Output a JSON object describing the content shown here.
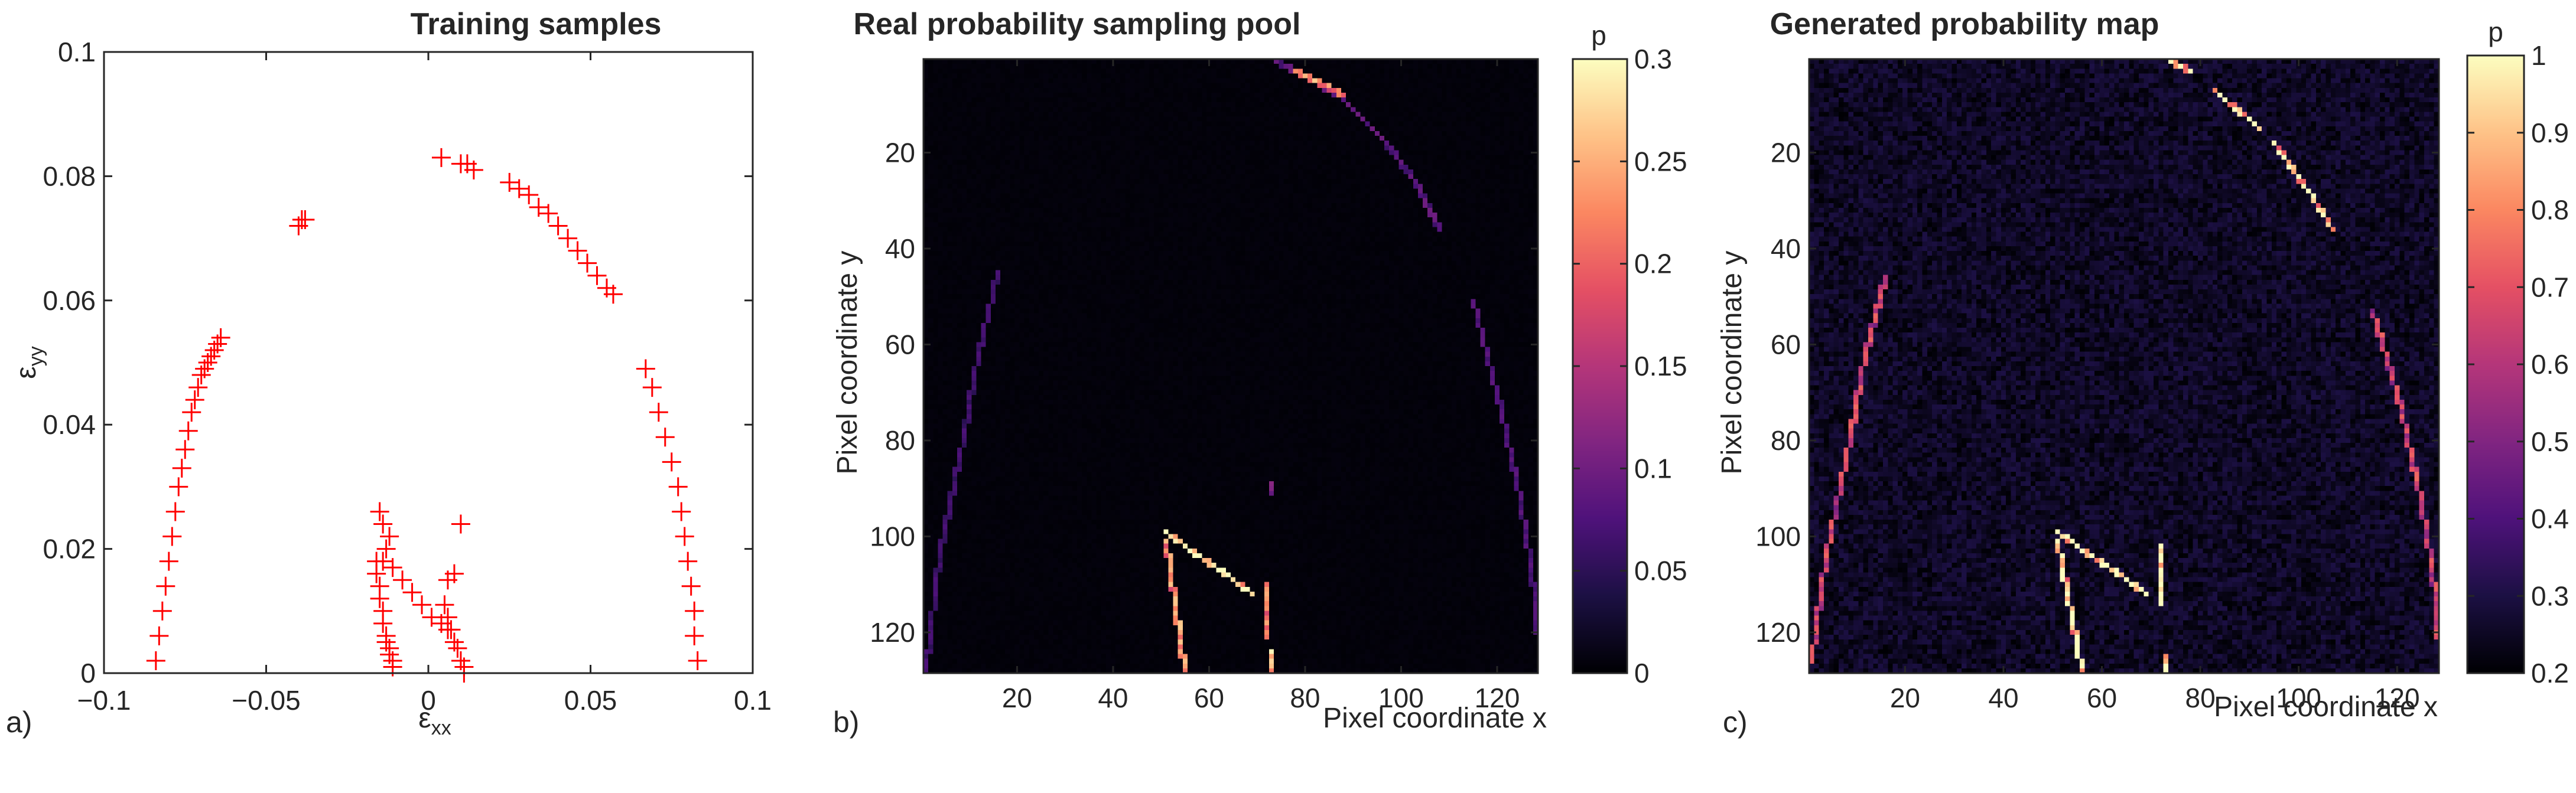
{
  "figure": {
    "panels": [
      {
        "label": "a)",
        "title": "Training samples"
      },
      {
        "label": "b)",
        "title": "Real probability sampling pool"
      },
      {
        "label": "c)",
        "title": "Generated probability map"
      }
    ]
  },
  "chart_data": [
    {
      "type": "scatter",
      "title": "Training samples",
      "xlabel": "ε_xx",
      "ylabel": "ε_yy",
      "xlim": [
        -0.1,
        0.1
      ],
      "ylim": [
        0,
        0.1
      ],
      "xticks": [
        -0.1,
        -0.05,
        0,
        0.05,
        0.1
      ],
      "xtick_labels": [
        "−0.1",
        "−0.05",
        "0",
        "0.05",
        "0.1"
      ],
      "yticks": [
        0,
        0.02,
        0.04,
        0.06,
        0.08,
        0.1
      ],
      "ytick_labels": [
        "0",
        "0.02",
        "0.04",
        "0.06",
        "0.08",
        "0.1"
      ],
      "marker": "+",
      "marker_color": "#ff0000",
      "series": [
        {
          "values": {
            "x": [
              -0.084,
              -0.083,
              -0.082,
              -0.081,
              -0.08,
              -0.079,
              -0.078,
              -0.077,
              -0.076,
              -0.075,
              -0.074,
              -0.073,
              -0.072,
              -0.071,
              -0.07,
              -0.069,
              -0.068,
              -0.067,
              -0.066,
              -0.065,
              -0.064,
              -0.04,
              -0.039,
              -0.038,
              0.004,
              0.01,
              0.012,
              0.014,
              0.025,
              0.028,
              0.031,
              0.034,
              0.037,
              0.04,
              0.043,
              0.046,
              0.049,
              0.052,
              0.055,
              0.057,
              0.067,
              0.069,
              0.071,
              0.073,
              0.075,
              0.077,
              0.078,
              0.079,
              0.08,
              0.081,
              0.082,
              0.082,
              0.083,
              -0.016,
              -0.016,
              -0.015,
              -0.015,
              -0.014,
              -0.014,
              -0.013,
              -0.013,
              -0.012,
              -0.012,
              -0.011,
              -0.011,
              -0.014,
              -0.011,
              -0.008,
              -0.005,
              -0.002,
              0.001,
              0.004,
              0.006,
              0.005,
              0.006,
              0.007,
              0.008,
              0.009,
              0.01,
              0.011,
              0.011,
              -0.015,
              -0.014,
              -0.012,
              -0.013,
              0.01,
              0.008,
              0.006
            ],
            "y": [
              0.002,
              0.006,
              0.01,
              0.014,
              0.018,
              0.022,
              0.026,
              0.03,
              0.033,
              0.036,
              0.039,
              0.042,
              0.044,
              0.046,
              0.048,
              0.049,
              0.05,
              0.051,
              0.052,
              0.053,
              0.054,
              0.072,
              0.073,
              0.073,
              0.083,
              0.082,
              0.082,
              0.081,
              0.079,
              0.078,
              0.077,
              0.075,
              0.074,
              0.072,
              0.07,
              0.068,
              0.066,
              0.064,
              0.062,
              0.061,
              0.049,
              0.046,
              0.042,
              0.038,
              0.034,
              0.03,
              0.026,
              0.022,
              0.018,
              0.014,
              0.01,
              0.006,
              0.002,
              0.018,
              0.016,
              0.014,
              0.012,
              0.01,
              0.008,
              0.006,
              0.005,
              0.004,
              0.003,
              0.002,
              0.001,
              0.018,
              0.017,
              0.015,
              0.013,
              0.011,
              0.009,
              0.008,
              0.007,
              0.011,
              0.009,
              0.007,
              0.005,
              0.004,
              0.002,
              0.001,
              0.0,
              0.026,
              0.024,
              0.022,
              0.02,
              0.024,
              0.016,
              0.015
            ]
          }
        }
      ]
    },
    {
      "type": "heatmap",
      "title": "Real probability sampling pool",
      "xlabel": "Pixel coordinate x",
      "ylabel": "Pixel coordinate y",
      "grid_size": [
        128,
        128
      ],
      "xticks": [
        20,
        40,
        60,
        80,
        100,
        120
      ],
      "yticks": [
        20,
        40,
        60,
        80,
        100,
        120
      ],
      "colorbar": {
        "label": "p",
        "range": [
          0,
          0.3
        ],
        "ticks": [
          0,
          0.05,
          0.1,
          0.15,
          0.2,
          0.25,
          0.3
        ],
        "tick_labels": [
          "0",
          "0.05",
          "0.1",
          "0.15",
          "0.2",
          "0.25",
          "0.3"
        ]
      },
      "colormap": [
        "#000004",
        "#1c1044",
        "#4f127b",
        "#812581",
        "#b5367a",
        "#e55064",
        "#fb8761",
        "#fec287",
        "#fcfdbf"
      ],
      "background_value": 0.003,
      "noise": 0.004,
      "tracks": [
        {
          "points": [
            [
              1,
              128
            ],
            [
              4,
              103
            ],
            [
              8,
              84
            ],
            [
              12,
              62
            ],
            [
              16,
              45
            ]
          ],
          "value": 0.06
        },
        {
          "points": [
            [
              74,
              1
            ],
            [
              80,
              4
            ],
            [
              88,
              9
            ],
            [
              96,
              17
            ],
            [
              103,
              26
            ],
            [
              108,
              36
            ]
          ],
          "value": 0.08
        },
        {
          "points": [
            [
              78,
              3
            ],
            [
              88,
              8
            ]
          ],
          "value": 0.22
        },
        {
          "points": [
            [
              115,
              51
            ],
            [
              120,
              70
            ],
            [
              124,
              88
            ],
            [
              127,
              105
            ],
            [
              129,
              125
            ]
          ],
          "value": 0.07
        },
        {
          "points": [
            [
              51,
              99
            ],
            [
              69,
              112
            ]
          ],
          "value": 0.28
        },
        {
          "points": [
            [
              51,
              101
            ],
            [
              55,
              128
            ]
          ],
          "value": 0.22
        },
        {
          "points": [
            [
              72,
              110
            ],
            [
              72,
              121
            ]
          ],
          "value": 0.2
        },
        {
          "points": [
            [
              73,
              89
            ],
            [
              73,
              91
            ]
          ],
          "value": 0.1
        },
        {
          "points": [
            [
              73,
              124
            ],
            [
              73,
              128
            ]
          ],
          "value": 0.24
        }
      ]
    },
    {
      "type": "heatmap",
      "title": "Generated probability map",
      "xlabel": "Pixel coordinate x",
      "ylabel": "Pixel coordinate y",
      "grid_size": [
        128,
        128
      ],
      "xticks": [
        20,
        40,
        60,
        80,
        100,
        120
      ],
      "yticks": [
        20,
        40,
        60,
        80,
        100,
        120
      ],
      "colorbar": {
        "label": "p",
        "range": [
          0.2,
          1
        ],
        "ticks": [
          0.2,
          0.3,
          0.4,
          0.5,
          0.6,
          0.7,
          0.8,
          0.9,
          1
        ],
        "tick_labels": [
          "0.2",
          "0.3",
          "0.4",
          "0.5",
          "0.6",
          "0.7",
          "0.8",
          "0.9",
          "1"
        ]
      },
      "colormap": [
        "#000004",
        "#1c1044",
        "#4f127b",
        "#812581",
        "#b5367a",
        "#e55064",
        "#fb8761",
        "#fec287",
        "#fcfdbf"
      ],
      "background_value": 0.23,
      "noise": 0.1,
      "tracks": [
        {
          "points": [
            [
              1,
              126
            ],
            [
              4,
              104
            ],
            [
              8,
              84
            ],
            [
              12,
              62
            ],
            [
              16,
              46
            ]
          ],
          "value": 0.6
        },
        {
          "points": [
            [
              74,
              1
            ],
            [
              78,
              3
            ]
          ],
          "value": 0.9
        },
        {
          "points": [
            [
              83,
              7
            ],
            [
              92,
              15
            ]
          ],
          "value": 0.85
        },
        {
          "points": [
            [
              95,
              18
            ],
            [
              102,
              28
            ],
            [
              107,
              36
            ]
          ],
          "value": 0.85
        },
        {
          "points": [
            [
              115,
              53
            ],
            [
              120,
              70
            ],
            [
              124,
              88
            ],
            [
              127,
              105
            ],
            [
              129,
              126
            ]
          ],
          "value": 0.6
        },
        {
          "points": [
            [
              51,
              99
            ],
            [
              69,
              112
            ]
          ],
          "value": 0.95
        },
        {
          "points": [
            [
              51,
              101
            ],
            [
              56,
              128
            ]
          ],
          "value": 0.9
        },
        {
          "points": [
            [
              72,
              102
            ],
            [
              72,
              114
            ]
          ],
          "value": 0.9
        },
        {
          "points": [
            [
              73,
              125
            ],
            [
              73,
              128
            ]
          ],
          "value": 0.85
        }
      ]
    }
  ]
}
